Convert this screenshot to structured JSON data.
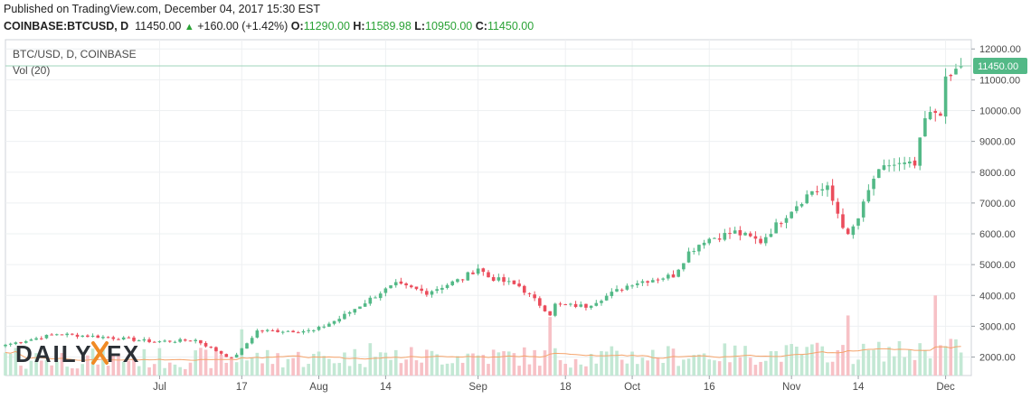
{
  "header": {
    "published": "Published on TradingView.com, December 04, 2017 15:30 EST",
    "symbol": "COINBASE:BTCUSD, D",
    "last": "11450.00",
    "change_arrow": "▲",
    "change": "+160.00 (+1.42%)",
    "o_label": "O:",
    "o_value": "11290.00",
    "h_label": "H:",
    "h_value": "11589.98",
    "l_label": "L:",
    "l_value": "10950.00",
    "c_label": "C:",
    "c_value": "11450.00"
  },
  "pane": {
    "title": "BTC/USD, D, COINBASE",
    "vol_label": "Vol (20)",
    "last_price_label": "11450.00",
    "watermark": "DAILYFX"
  },
  "colors": {
    "up": "#53b987",
    "down": "#eb4d5c",
    "vol_up": "#c3e8d4",
    "vol_down": "#f7c1c6",
    "vol_ma": "#f5a36a",
    "grid": "#eef0f2",
    "price_line": "#9fd4bb",
    "label_bg": "#53b987"
  },
  "chart_data": {
    "type": "candlestick",
    "y_ticks": [
      "12000.00",
      "11000.00",
      "10000.00",
      "9000.00",
      "8000.00",
      "7000.00",
      "6000.00",
      "5000.00",
      "4000.00",
      "3000.00",
      "2000.00"
    ],
    "ylim": [
      1400,
      12300
    ],
    "x_ticks": [
      "Jul",
      "17",
      "Aug",
      "14",
      "Sep",
      "18",
      "Oct",
      "16",
      "Nov",
      "14",
      "Dec"
    ],
    "x_tick_dates": [
      "2017-07-01",
      "2017-07-17",
      "2017-08-01",
      "2017-08-14",
      "2017-09-01",
      "2017-09-18",
      "2017-10-01",
      "2017-10-16",
      "2017-11-01",
      "2017-11-14",
      "2017-12-01"
    ],
    "series_close_keypoints": [
      [
        "2017-06-01",
        2400
      ],
      [
        "2017-06-11",
        2750
      ],
      [
        "2017-06-20",
        2650
      ],
      [
        "2017-06-30",
        2500
      ],
      [
        "2017-07-08",
        2550
      ],
      [
        "2017-07-15",
        1950
      ],
      [
        "2017-07-17",
        2250
      ],
      [
        "2017-07-20",
        2850
      ],
      [
        "2017-07-31",
        2850
      ],
      [
        "2017-08-05",
        3250
      ],
      [
        "2017-08-13",
        4100
      ],
      [
        "2017-08-16",
        4350
      ],
      [
        "2017-08-22",
        4100
      ],
      [
        "2017-08-29",
        4550
      ],
      [
        "2017-09-01",
        4900
      ],
      [
        "2017-09-03",
        4600
      ],
      [
        "2017-09-09",
        4300
      ],
      [
        "2017-09-15",
        3400
      ],
      [
        "2017-09-16",
        3700
      ],
      [
        "2017-09-22",
        3650
      ],
      [
        "2017-10-01",
        4400
      ],
      [
        "2017-10-09",
        4650
      ],
      [
        "2017-10-12",
        5400
      ],
      [
        "2017-10-15",
        5800
      ],
      [
        "2017-10-21",
        6050
      ],
      [
        "2017-10-26",
        5750
      ],
      [
        "2017-11-01",
        6800
      ],
      [
        "2017-11-05",
        7400
      ],
      [
        "2017-11-08",
        7450
      ],
      [
        "2017-11-12",
        5900
      ],
      [
        "2017-11-14",
        6500
      ],
      [
        "2017-11-17",
        7800
      ],
      [
        "2017-11-20",
        8250
      ],
      [
        "2017-11-25",
        8200
      ],
      [
        "2017-11-27",
        9700
      ],
      [
        "2017-11-29",
        9950
      ],
      [
        "2017-11-30",
        10000
      ],
      [
        "2017-12-01",
        10900
      ],
      [
        "2017-12-03",
        11290
      ],
      [
        "2017-12-04",
        11450
      ]
    ],
    "volume_spikes": [
      [
        "2017-07-17",
        2900
      ],
      [
        "2017-08-11",
        2450
      ],
      [
        "2017-09-15",
        3300
      ],
      [
        "2017-11-12",
        3350
      ],
      [
        "2017-11-29",
        4000
      ]
    ]
  }
}
